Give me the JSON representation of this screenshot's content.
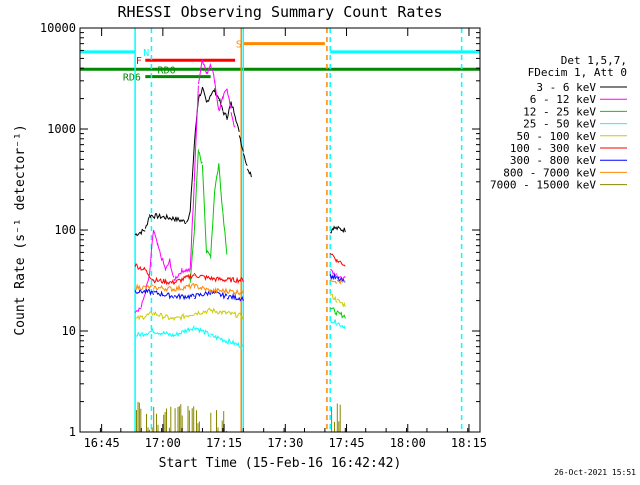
{
  "chart_data": {
    "type": "line",
    "title": "RHESSI Observing Summary Count Rates",
    "xlabel": "Start Time (15-Feb-16 16:42:42)",
    "ylabel": "Count Rate (s⁻¹ detector⁻¹)",
    "yscale": "log",
    "ylim": [
      1,
      10000
    ],
    "xlim_minutes": [
      -3,
      95
    ],
    "x_tick_labels": [
      "16:45",
      "17:00",
      "17:15",
      "17:30",
      "17:45",
      "18:00",
      "18:15"
    ],
    "y_tick_labels": [
      "1",
      "10",
      "100",
      "1000",
      "10000"
    ],
    "timestamp": "26-Oct-2021 15:51",
    "legend_header": [
      "Det 1,5,7,",
      "FDecim 1, Att 0"
    ],
    "data_gaps_minutes": [
      [
        -3,
        10.5
      ],
      [
        29,
        58.3
      ],
      [
        62,
        95
      ]
    ],
    "series": [
      {
        "name": "3 - 6 keV",
        "color": "#000000",
        "points": [
          [
            10.5,
            90
          ],
          [
            13,
            100
          ],
          [
            14,
            140
          ],
          [
            20,
            130
          ],
          [
            23,
            120
          ],
          [
            24,
            150
          ],
          [
            25,
            700
          ],
          [
            26,
            2000
          ],
          [
            27,
            2500
          ],
          [
            28,
            1800
          ],
          [
            29,
            2200
          ],
          [
            30,
            2400
          ],
          [
            31,
            2000
          ],
          [
            32,
            1500
          ],
          [
            33,
            1300
          ],
          [
            34,
            1800
          ],
          [
            35,
            1400
          ],
          [
            36,
            900
          ],
          [
            37,
            600
          ],
          [
            38,
            420
          ],
          [
            39,
            350
          ],
          [
            58.3,
            95
          ],
          [
            59,
            105
          ],
          [
            62,
            100
          ]
        ]
      },
      {
        "name": "6 - 12 keV",
        "color": "#ff00ff",
        "points": [
          [
            10.5,
            16
          ],
          [
            12,
            17
          ],
          [
            14,
            35
          ],
          [
            15,
            100
          ],
          [
            16,
            70
          ],
          [
            18,
            40
          ],
          [
            19,
            50
          ],
          [
            20,
            32
          ],
          [
            22,
            40
          ],
          [
            24,
            40
          ],
          [
            25,
            300
          ],
          [
            26,
            2800
          ],
          [
            27,
            5000
          ],
          [
            28,
            3500
          ],
          [
            29,
            4500
          ],
          [
            30,
            3000
          ],
          [
            31,
            1500
          ],
          [
            32,
            2000
          ],
          [
            33,
            2600
          ],
          [
            34,
            1500
          ],
          [
            35,
            1000
          ],
          [
            58.3,
            40
          ],
          [
            60,
            35
          ],
          [
            62,
            33
          ]
        ]
      },
      {
        "name": "12 - 25 keV",
        "color": "#00cc00",
        "points": [
          [
            24,
            30
          ],
          [
            25,
            100
          ],
          [
            26,
            600
          ],
          [
            27,
            450
          ],
          [
            28,
            60
          ],
          [
            29,
            55
          ],
          [
            30,
            250
          ],
          [
            31,
            450
          ],
          [
            32,
            150
          ],
          [
            33,
            60
          ],
          [
            58.3,
            17
          ],
          [
            60,
            15
          ],
          [
            62,
            14
          ]
        ]
      },
      {
        "name": "25 - 50 keV",
        "color": "#00ffff",
        "points": [
          [
            10.5,
            9
          ],
          [
            15,
            10
          ],
          [
            20,
            9
          ],
          [
            25,
            11
          ],
          [
            29,
            9
          ],
          [
            33,
            8
          ],
          [
            37,
            7
          ],
          [
            58.3,
            13
          ],
          [
            60,
            12
          ],
          [
            62,
            11
          ]
        ]
      },
      {
        "name": "50 - 100 keV",
        "color": "#cccc00",
        "points": [
          [
            10.5,
            13
          ],
          [
            15,
            15
          ],
          [
            20,
            13
          ],
          [
            25,
            15
          ],
          [
            29,
            16
          ],
          [
            33,
            15
          ],
          [
            37,
            14
          ],
          [
            58.3,
            23
          ],
          [
            60,
            20
          ],
          [
            62,
            18
          ]
        ]
      },
      {
        "name": "100 - 300 keV",
        "color": "#ff0000",
        "points": [
          [
            10.5,
            45
          ],
          [
            13,
            40
          ],
          [
            15,
            32
          ],
          [
            20,
            30
          ],
          [
            25,
            36
          ],
          [
            29,
            33
          ],
          [
            33,
            32
          ],
          [
            37,
            32
          ],
          [
            58.3,
            60
          ],
          [
            60,
            50
          ],
          [
            62,
            45
          ]
        ]
      },
      {
        "name": "300 - 800 keV",
        "color": "#0000ff",
        "points": [
          [
            10.5,
            25
          ],
          [
            15,
            24
          ],
          [
            20,
            22
          ],
          [
            25,
            22
          ],
          [
            29,
            24
          ],
          [
            33,
            22
          ],
          [
            37,
            21
          ],
          [
            58.3,
            35
          ],
          [
            60,
            33
          ],
          [
            62,
            30
          ]
        ]
      },
      {
        "name": "800 - 7000 keV",
        "color": "#ff8800",
        "points": [
          [
            10.5,
            27
          ],
          [
            15,
            27
          ],
          [
            20,
            26
          ],
          [
            25,
            28
          ],
          [
            29,
            25
          ],
          [
            33,
            25
          ],
          [
            37,
            24
          ],
          [
            58.3,
            33
          ],
          [
            60,
            31
          ],
          [
            62,
            30
          ]
        ]
      },
      {
        "name": "7000 - 15000 keV",
        "color": "#888800",
        "points": [
          [
            10.5,
            1.5
          ],
          [
            33,
            1.5
          ],
          [
            58.3,
            1.5
          ],
          [
            61,
            1.5
          ]
        ]
      }
    ],
    "flag_bars": [
      {
        "label": "N",
        "color": "#00ffff",
        "y": 5800,
        "segments": [
          [
            -3,
            10.5
          ],
          [
            58.3,
            95
          ]
        ],
        "label_x": 12.5
      },
      {
        "label": "S",
        "color": "#ff8800",
        "y": 7000,
        "segments": [
          [
            37,
            57
          ]
        ],
        "label_x": 35.2
      },
      {
        "label": "F",
        "color": "#ff0000",
        "y": 4800,
        "segments": [
          [
            13,
            35
          ]
        ],
        "label_x": 10.7
      },
      {
        "label": "RD0",
        "color": "#008800",
        "y": 3900,
        "segments": [
          [
            -3,
            95
          ]
        ],
        "label_x": 16
      },
      {
        "label": "RD6",
        "color": "#008800",
        "y": 3300,
        "segments": [
          [
            13,
            29
          ]
        ],
        "label_x": 7.5
      }
    ],
    "vertical_markers": [
      {
        "x": 10.5,
        "color": "#00ffff",
        "style": "solid"
      },
      {
        "x": 14.5,
        "color": "#00ffff",
        "style": "dashed"
      },
      {
        "x": 36.5,
        "color": "#ff8800",
        "style": "solid"
      },
      {
        "x": 37.0,
        "color": "#00ffff",
        "style": "solid"
      },
      {
        "x": 57.5,
        "color": "#ff8800",
        "style": "dashed"
      },
      {
        "x": 58.3,
        "color": "#00ffff",
        "style": "dashed"
      },
      {
        "x": 90.5,
        "color": "#00ffff",
        "style": "dashed"
      }
    ]
  }
}
